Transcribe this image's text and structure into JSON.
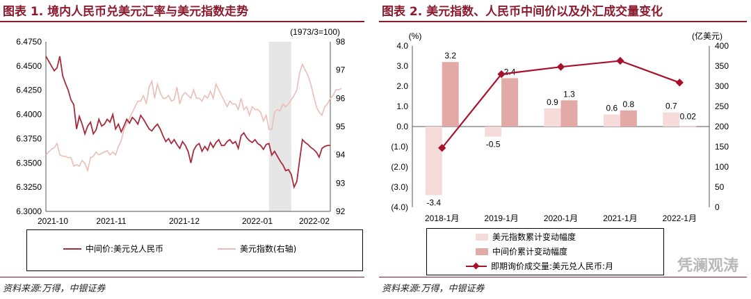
{
  "chart_data": [
    {
      "type": "line",
      "title": "图表 1. 境内人民币兑美元汇率与美元指数走势",
      "right_axis_note": "(1973/3=100)",
      "x_ticks": [
        "2021-10",
        "2021-11",
        "2021-12",
        "2022-01",
        "2022-02"
      ],
      "y_left": {
        "range": [
          6.3,
          6.475
        ],
        "ticks": [
          "6.4750",
          "6.4500",
          "6.4250",
          "6.4000",
          "6.3750",
          "6.3500",
          "6.3250",
          "6.3000"
        ],
        "tick_values": [
          6.475,
          6.45,
          6.425,
          6.4,
          6.375,
          6.35,
          6.325,
          6.3
        ]
      },
      "y_right": {
        "range": [
          92,
          98
        ],
        "ticks": [
          "98",
          "97",
          "96",
          "95",
          "94",
          "93",
          "92"
        ],
        "tick_values": [
          98,
          97,
          96,
          95,
          94,
          93,
          92
        ]
      },
      "shaded_period": {
        "start_index": 80,
        "end_index": 88
      },
      "color_cny": "#a52a3a",
      "color_dxy": "#ecbdb8",
      "color_shade": "#e6e6e6",
      "series": [
        {
          "name": "中间价:美元兑人民币",
          "axis": "left",
          "values": [
            6.46,
            6.455,
            6.45,
            6.445,
            6.448,
            6.46,
            6.44,
            6.432,
            6.425,
            6.415,
            6.41,
            6.385,
            6.398,
            6.39,
            6.38,
            6.388,
            6.392,
            6.38,
            6.384,
            6.395,
            6.388,
            6.39,
            6.395,
            6.392,
            6.4,
            6.385,
            6.39,
            6.382,
            6.388,
            6.395,
            6.391,
            6.397,
            6.394,
            6.39,
            6.399,
            6.395,
            6.39,
            6.385,
            6.383,
            6.387,
            6.39,
            6.385,
            6.378,
            6.372,
            6.375,
            6.37,
            6.374,
            6.369,
            6.365,
            6.372,
            6.368,
            6.362,
            6.35,
            6.363,
            6.368,
            6.37,
            6.362,
            6.367,
            6.363,
            6.371,
            6.366,
            6.371,
            6.374,
            6.368,
            6.368,
            6.372,
            6.374,
            6.37,
            6.372,
            6.365,
            6.378,
            6.381,
            6.376,
            6.373,
            6.371,
            6.374,
            6.37,
            6.368,
            6.364,
            6.369,
            6.37,
            6.358,
            6.362,
            6.357,
            6.352,
            6.348,
            6.342,
            6.343,
            6.338,
            6.325,
            6.331,
            6.353,
            6.374,
            6.371,
            6.369,
            6.366,
            6.364,
            6.361,
            6.356,
            6.365,
            6.367,
            6.368,
            6.368
          ]
        },
        {
          "name": "美元指数(右轴)",
          "axis": "right",
          "values": [
            94.0,
            94.1,
            94.2,
            94.25,
            94.4,
            94.0,
            93.95,
            93.95,
            93.9,
            93.9,
            93.6,
            93.65,
            93.6,
            93.8,
            93.7,
            93.45,
            93.9,
            93.95,
            94.1,
            94.0,
            94.05,
            94.1,
            94.15,
            94.0,
            94.1,
            94.0,
            94.3,
            94.5,
            94.9,
            95.1,
            95.3,
            95.5,
            95.7,
            95.9,
            95.9,
            96.1,
            95.8,
            96.4,
            96.6,
            96.0,
            96.5,
            96.2,
            96.0,
            96.0,
            96.1,
            95.9,
            95.95,
            96.4,
            95.8,
            96.1,
            96.2,
            96.1,
            96.0,
            96.3,
            96.0,
            96.0,
            95.9,
            96.1,
            96.0,
            96.25,
            96.0,
            96.5,
            96.3,
            96.1,
            95.9,
            95.7,
            95.9,
            95.8,
            95.8,
            95.6,
            96.0,
            95.6,
            95.7,
            95.4,
            95.7,
            95.6,
            95.6,
            95.5,
            95.2,
            95.4,
            94.9,
            94.9,
            95.5,
            95.6,
            95.55,
            95.8,
            95.7,
            95.8,
            95.95,
            96.1,
            96.3,
            96.9,
            97.2,
            97.0,
            96.8,
            96.5,
            96.1,
            95.7,
            95.5,
            95.4,
            95.7,
            95.8,
            96.0,
            96.1,
            96.3,
            96.3,
            96.35
          ]
        }
      ],
      "legend": [
        "中间价:美元兑人民币",
        "美元指数(右轴)"
      ]
    },
    {
      "type": "bar",
      "title": "图表 2. 美元指数、人民币中间价以及外汇成交量变化",
      "y_left_unit": "(%)",
      "y_right_unit": "(亿美元)",
      "categories": [
        "2018-1月",
        "2019-1月",
        "2020-1月",
        "2021-1月",
        "2022-1月"
      ],
      "y_left": {
        "range": [
          -4.0,
          4.0
        ],
        "ticks": [
          "4.0",
          "3.0",
          "2.0",
          "1.0",
          "0.0",
          "(1.0)",
          "(2.0)",
          "(3.0)",
          "(4.0)"
        ],
        "tick_values": [
          4,
          3,
          2,
          1,
          0,
          -1,
          -2,
          -3,
          -4
        ]
      },
      "y_right": {
        "range": [
          0,
          400
        ],
        "ticks": [
          "400",
          "350",
          "300",
          "250",
          "200",
          "150",
          "100",
          "50",
          "0"
        ],
        "tick_values": [
          400,
          350,
          300,
          250,
          200,
          150,
          100,
          50,
          0
        ]
      },
      "colors": {
        "usd_bar": "#f5dcdb",
        "cny_bar": "#e2a9a6",
        "line": "#a8102b"
      },
      "series": [
        {
          "name": "美元指数累计变动幅度",
          "type": "bar",
          "axis": "left",
          "values": [
            -3.4,
            -0.5,
            0.9,
            0.6,
            0.7
          ],
          "labels": [
            "-3.4",
            "-0.5",
            "0.9",
            "0.6",
            "0.7"
          ]
        },
        {
          "name": "中间价累计变动幅度",
          "type": "bar",
          "axis": "left",
          "values": [
            3.2,
            2.4,
            1.3,
            0.8,
            0.02
          ],
          "labels": [
            "3.2",
            "2.4",
            "1.3",
            "0.8",
            "0.02"
          ]
        },
        {
          "name": "即期询价成交量:美元兑人民币:月(右轴)",
          "type": "line",
          "axis": "right",
          "values": [
            147,
            330,
            348,
            363,
            309
          ]
        }
      ],
      "legend": [
        "美元指数累计变动幅度",
        "中间价累计变动幅度",
        "即期询价成交量:美元兑人民币:月"
      ]
    }
  ],
  "source": "资料来源:万得，中银证券",
  "watermark": "凭澜观涛"
}
